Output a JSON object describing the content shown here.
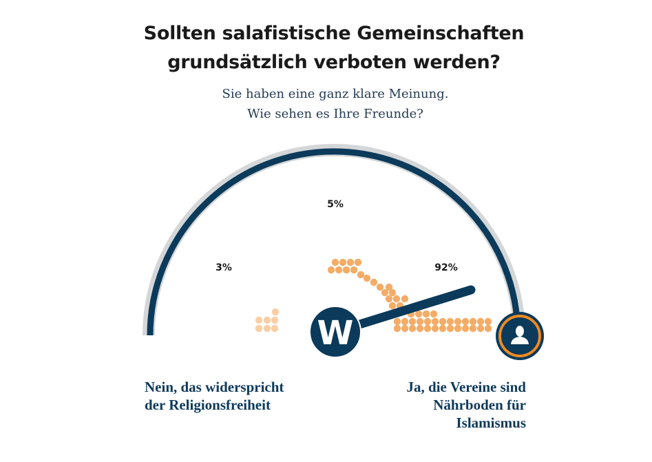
{
  "title": {
    "line1": "Sollten salafistische Gemeinschaften",
    "line2": "grundsätzlich verboten werden?"
  },
  "subtitle": {
    "line1": "Sie haben eine ganz klare Meinung.",
    "line2": "Wie sehen es Ihre Freunde?"
  },
  "gauge": {
    "options": [
      {
        "percent_label": "3%",
        "value": 3
      },
      {
        "percent_label": "5%",
        "value": 5
      },
      {
        "percent_label": "92%",
        "value": 92
      }
    ],
    "needle_value_percent": 92,
    "logo_letter": "W",
    "user_icon": "user-icon"
  },
  "labels": {
    "left": {
      "line1": "Nein, das widerspricht",
      "line2": "der Religionsfreiheit"
    },
    "right": {
      "line1": "Ja, die Vereine sind",
      "line2": "Nährboden für",
      "line3": "Islamismus"
    }
  },
  "colors": {
    "navy": "#0b3a5a",
    "arc_gray": "#d4d6d8",
    "dot_orange": "#f4ac66",
    "dot_light": "#f9cfa5",
    "ring_orange": "#ee8a22"
  }
}
